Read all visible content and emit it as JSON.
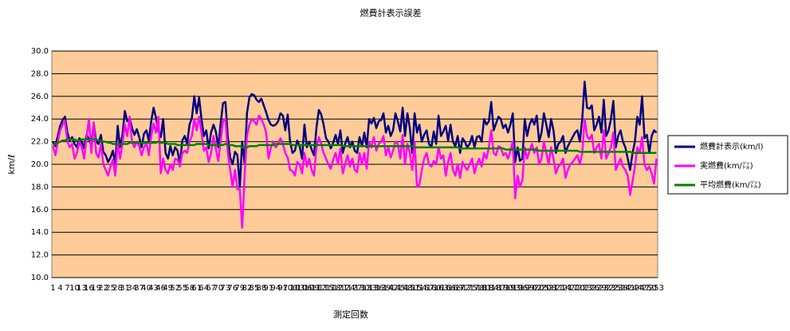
{
  "chart_data": {
    "type": "line",
    "title": "燃費計表示誤差",
    "x_label": "測定回数",
    "y_label": "km/ℓ",
    "ylim": [
      10,
      30
    ],
    "yticks": [
      {
        "value": 10,
        "label": "10.0"
      },
      {
        "value": 12,
        "label": "12.0"
      },
      {
        "value": 14,
        "label": "14.0"
      },
      {
        "value": 16,
        "label": "16.0"
      },
      {
        "value": 18,
        "label": "18.0"
      },
      {
        "value": 20,
        "label": "20.0"
      },
      {
        "value": 22,
        "label": "22.0"
      },
      {
        "value": 24,
        "label": "24.0"
      },
      {
        "value": 26,
        "label": "26.0"
      },
      {
        "value": 28,
        "label": "28.0"
      },
      {
        "value": 30,
        "label": "30.0"
      }
    ],
    "grid": true,
    "legend": "right",
    "background": "#ffcc99",
    "categories": [
      1,
      null,
      null,
      4,
      null,
      null,
      7,
      null,
      null,
      10,
      null,
      null,
      13,
      null,
      null,
      16,
      null,
      null,
      19,
      null,
      null,
      22,
      null,
      null,
      25,
      null,
      null,
      28,
      null,
      null,
      31,
      null,
      null,
      34,
      null,
      null,
      37,
      null,
      null,
      40,
      null,
      null,
      43,
      null,
      null,
      46,
      null,
      null,
      49,
      null,
      null,
      52,
      null,
      null,
      55,
      null,
      null,
      58,
      null,
      null,
      61,
      null,
      null,
      64,
      null,
      null,
      67,
      null,
      null,
      70,
      null,
      null,
      73,
      null,
      null,
      76,
      null,
      null,
      79,
      null,
      null,
      82,
      null,
      null,
      85,
      null,
      null,
      88,
      null,
      null,
      91,
      null,
      null,
      94,
      null,
      null,
      97,
      null,
      null,
      100,
      null,
      null,
      103,
      null,
      null,
      106,
      null,
      null,
      109,
      null,
      null,
      112,
      null,
      null,
      115,
      null,
      null,
      118,
      null,
      null,
      121,
      null,
      null,
      124,
      null,
      null,
      127,
      null,
      null,
      130,
      null,
      null,
      133,
      null,
      null,
      136,
      null,
      null,
      139,
      null,
      null,
      142,
      null,
      null,
      145,
      null,
      null,
      148,
      null,
      null,
      151,
      null,
      null,
      154,
      null,
      null,
      157,
      null,
      null,
      160,
      null,
      null,
      163,
      null,
      null,
      166,
      null,
      null,
      169,
      null,
      null,
      172,
      null,
      null,
      175,
      null,
      null,
      178,
      null,
      null,
      181,
      null,
      null,
      184,
      null,
      null,
      187,
      null,
      null,
      190,
      null,
      null,
      193,
      null,
      null,
      196,
      null,
      null,
      199,
      null,
      null,
      202,
      null,
      null,
      205,
      null,
      null,
      208,
      null,
      null,
      211,
      null,
      null,
      214,
      null,
      null,
      217,
      null,
      null,
      220,
      null,
      null,
      223,
      null,
      null,
      226,
      null,
      null,
      229,
      null,
      null,
      232,
      null,
      null,
      235,
      null,
      null,
      238,
      null,
      null,
      241,
      null,
      null,
      244,
      null,
      null,
      247,
      null,
      null,
      250,
      null,
      null,
      253
    ],
    "series": [
      {
        "name": "燃費計表示(km/l)",
        "color": "#000080",
        "values": [
          22.0,
          21.6,
          22.5,
          23.4,
          23.9,
          24.2,
          22.8,
          22.1,
          22.4,
          21.8,
          21.5,
          22.3,
          22.0,
          21.4,
          22.6,
          22.2,
          21.7,
          23.6,
          22.0,
          21.8,
          22.6,
          21.1,
          20.8,
          20.2,
          20.6,
          21.2,
          20.0,
          23.4,
          21.5,
          22.6,
          24.7,
          23.8,
          24.1,
          23.2,
          22.6,
          23.1,
          22.4,
          21.5,
          22.7,
          23.0,
          22.1,
          23.8,
          25.0,
          24.1,
          23.0,
          22.4,
          24.0,
          21.0,
          20.5,
          21.6,
          20.8,
          21.5,
          21.2,
          20.0,
          22.1,
          22.5,
          21.8,
          23.5,
          24.1,
          26.0,
          24.5,
          25.9,
          24.0,
          22.5,
          23.0,
          21.4,
          22.8,
          23.5,
          22.9,
          21.5,
          23.6,
          25.4,
          25.5,
          22.4,
          20.6,
          20.0,
          21.1,
          20.8,
          18.0,
          22.0,
          20.1,
          24.5,
          25.9,
          26.2,
          26.1,
          25.7,
          25.5,
          25.8,
          25.2,
          24.6,
          23.9,
          23.5,
          23.4,
          23.5,
          23.8,
          24.5,
          24.3,
          23.0,
          24.4,
          22.0,
          21.0,
          21.2,
          22.1,
          21.6,
          20.5,
          23.5,
          21.5,
          22.0,
          21.3,
          20.8,
          23.2,
          24.8,
          24.4,
          23.5,
          22.3,
          22.0,
          21.4,
          21.9,
          22.6,
          21.8,
          23.0,
          21.0,
          21.8,
          22.4,
          21.5,
          22.0,
          21.2,
          21.0,
          22.4,
          21.6,
          22.8,
          21.5,
          24.0,
          23.6,
          24.1,
          23.2,
          23.8,
          23.9,
          24.5,
          22.8,
          23.4,
          22.5,
          23.0,
          24.5,
          23.8,
          22.9,
          25.0,
          22.5,
          24.5,
          23.2,
          21.0,
          24.5,
          22.8,
          23.5,
          22.0,
          22.6,
          23.0,
          21.8,
          21.5,
          22.9,
          21.8,
          24.3,
          22.5,
          22.9,
          23.4,
          22.1,
          23.5,
          22.0,
          21.6,
          22.5,
          21.0,
          22.3,
          22.0,
          21.5,
          21.8,
          22.5,
          21.5,
          22.4,
          22.5,
          22.0,
          24.0,
          23.5,
          23.8,
          25.5,
          23.0,
          23.6,
          24.2,
          24.0,
          23.2,
          23.5,
          22.8,
          23.5,
          24.5,
          20.2,
          21.5,
          20.3,
          20.5,
          24.0,
          22.5,
          23.5,
          24.0,
          23.5,
          24.3,
          22.0,
          22.8,
          24.5,
          23.5,
          22.4,
          24.0,
          23.0,
          21.0,
          21.8,
          22.0,
          22.5,
          21.0,
          21.6,
          22.0,
          22.4,
          22.8,
          23.0,
          22.0,
          24.0,
          27.3,
          25.0,
          24.9,
          25.2,
          23.0,
          23.5,
          24.2,
          22.8,
          25.7,
          22.5,
          23.0,
          24.0,
          25.6,
          21.5,
          22.5,
          23.0,
          22.0,
          21.5,
          20.5,
          19.5,
          21.0,
          22.0,
          24.2,
          23.5,
          26.0,
          22.3,
          22.6,
          21.0,
          22.5,
          23.0,
          22.8
        ]
      },
      {
        "name": "実燃費(km/㍑)",
        "color": "#ff00ff",
        "values": [
          21.6,
          20.8,
          22.0,
          23.0,
          23.5,
          23.8,
          22.0,
          21.5,
          21.8,
          20.5,
          21.0,
          22.0,
          21.5,
          20.5,
          22.4,
          24.0,
          21.0,
          23.7,
          21.0,
          20.6,
          21.8,
          20.0,
          19.5,
          19.0,
          19.8,
          20.4,
          19.0,
          22.0,
          20.5,
          21.8,
          23.5,
          22.5,
          24.2,
          22.0,
          21.5,
          22.0,
          21.6,
          20.8,
          21.5,
          21.9,
          20.8,
          22.5,
          23.6,
          22.8,
          24.2,
          19.2,
          20.5,
          19.5,
          19.2,
          20.0,
          19.5,
          20.5,
          20.4,
          19.8,
          21.0,
          21.2,
          21.0,
          22.0,
          22.5,
          24.0,
          23.0,
          24.2,
          22.8,
          21.2,
          21.5,
          20.2,
          21.0,
          22.5,
          21.4,
          20.3,
          22.0,
          23.8,
          24.0,
          21.0,
          19.5,
          18.0,
          19.5,
          17.8,
          17.8,
          14.4,
          19.0,
          22.5,
          23.5,
          24.0,
          23.8,
          23.5,
          24.3,
          24.0,
          23.5,
          22.8,
          20.5,
          21.5,
          22.0,
          21.5,
          21.8,
          22.3,
          21.8,
          21.0,
          20.6,
          19.5,
          19.4,
          19.0,
          20.2,
          20.0,
          19.2,
          21.0,
          19.8,
          20.5,
          19.5,
          19.0,
          21.5,
          22.4,
          21.8,
          21.0,
          20.5,
          20.0,
          19.6,
          20.4,
          21.0,
          20.0,
          21.4,
          19.2,
          20.0,
          20.8,
          19.8,
          20.5,
          19.5,
          19.3,
          21.0,
          20.0,
          21.0,
          19.6,
          22.0,
          21.5,
          22.4,
          21.2,
          21.8,
          22.0,
          22.5,
          20.8,
          21.5,
          20.6,
          21.2,
          22.0,
          21.8,
          20.5,
          22.6,
          20.0,
          21.8,
          21.0,
          19.5,
          22.0,
          18.0,
          18.2,
          19.5,
          20.5,
          21.0,
          20.0,
          19.8,
          20.3,
          20.0,
          21.5,
          20.5,
          20.8,
          19.0,
          20.2,
          21.0,
          19.5,
          19.0,
          20.0,
          18.8,
          20.2,
          19.8,
          19.5,
          20.0,
          20.5,
          19.2,
          20.0,
          20.5,
          19.8,
          21.0,
          20.5,
          21.5,
          23.0,
          21.0,
          20.8,
          21.6,
          21.5,
          20.8,
          21.0,
          20.5,
          21.2,
          22.0,
          17.0,
          19.0,
          18.0,
          18.6,
          21.5,
          20.5,
          21.2,
          21.8,
          21.0,
          21.5,
          20.0,
          20.5,
          22.0,
          21.0,
          20.0,
          21.5,
          20.5,
          19.2,
          19.8,
          20.0,
          20.5,
          18.8,
          19.5,
          20.0,
          20.2,
          20.5,
          20.8,
          20.0,
          21.0,
          24.0,
          22.5,
          22.2,
          22.6,
          21.0,
          21.5,
          21.8,
          20.5,
          23.0,
          20.5,
          21.0,
          21.5,
          22.8,
          19.5,
          20.0,
          20.5,
          19.8,
          19.5,
          19.0,
          17.3,
          18.5,
          19.8,
          21.5,
          21.0,
          22.4,
          20.0,
          19.5,
          19.8,
          19.2,
          18.3,
          20.5
        ]
      },
      {
        "name": "平均燃費(km/㍑)",
        "color": "#008000",
        "values": [
          21.7,
          21.8,
          21.9,
          22.0,
          22.1,
          22.1,
          22.2,
          22.2,
          22.2,
          22.2,
          22.1,
          22.1,
          22.2,
          22.2,
          22.2,
          22.2,
          22.2,
          22.2,
          22.2,
          22.1,
          22.1,
          22.0,
          22.0,
          21.9,
          21.9,
          21.8,
          21.8,
          21.8,
          21.8,
          21.8,
          21.8,
          21.8,
          21.9,
          21.9,
          21.9,
          21.9,
          21.9,
          21.9,
          21.9,
          21.9,
          21.9,
          21.9,
          21.9,
          21.9,
          22.0,
          21.9,
          21.9,
          21.9,
          21.8,
          21.8,
          21.8,
          21.8,
          21.7,
          21.7,
          21.7,
          21.7,
          21.7,
          21.7,
          21.7,
          21.7,
          21.8,
          21.8,
          21.8,
          21.8,
          21.8,
          21.7,
          21.7,
          21.7,
          21.7,
          21.7,
          21.7,
          21.7,
          21.8,
          21.7,
          21.7,
          21.7,
          21.6,
          21.6,
          21.6,
          21.5,
          21.5,
          21.5,
          21.6,
          21.6,
          21.6,
          21.6,
          21.7,
          21.7,
          21.7,
          21.7,
          21.7,
          21.7,
          21.7,
          21.8,
          21.8,
          21.8,
          21.8,
          21.8,
          21.8,
          21.8,
          21.7,
          21.7,
          21.7,
          21.7,
          21.7,
          21.7,
          21.7,
          21.7,
          21.7,
          21.7,
          21.7,
          21.7,
          21.7,
          21.7,
          21.7,
          21.7,
          21.7,
          21.7,
          21.7,
          21.7,
          21.7,
          21.6,
          21.6,
          21.6,
          21.6,
          21.6,
          21.6,
          21.6,
          21.6,
          21.6,
          21.6,
          21.6,
          21.6,
          21.6,
          21.6,
          21.6,
          21.6,
          21.6,
          21.6,
          21.6,
          21.6,
          21.6,
          21.6,
          21.6,
          21.6,
          21.6,
          21.6,
          21.6,
          21.6,
          21.6,
          21.6,
          21.5,
          21.5,
          21.5,
          21.5,
          21.5,
          21.5,
          21.5,
          21.5,
          21.5,
          21.5,
          21.5,
          21.5,
          21.5,
          21.5,
          21.5,
          21.5,
          21.5,
          21.5,
          21.5,
          21.4,
          21.4,
          21.4,
          21.4,
          21.4,
          21.4,
          21.4,
          21.4,
          21.4,
          21.4,
          21.4,
          21.4,
          21.4,
          21.4,
          21.4,
          21.4,
          21.4,
          21.4,
          21.4,
          21.3,
          21.3,
          21.3,
          21.3,
          21.3,
          21.3,
          21.3,
          21.3,
          21.3,
          21.3,
          21.3,
          21.3,
          21.3,
          21.3,
          21.2,
          21.2,
          21.2,
          21.2,
          21.2,
          21.2,
          21.2,
          21.2,
          21.2,
          21.2,
          21.2,
          21.2,
          21.2,
          21.2,
          21.2,
          21.2,
          21.2,
          21.1,
          21.1,
          21.1,
          21.1,
          21.1,
          21.1,
          21.1,
          21.1,
          21.1,
          21.1,
          21.1,
          21.1,
          21.1,
          21.1,
          21.1,
          21.1,
          21.1,
          21.1,
          21.1,
          21.1,
          21.1,
          21.1,
          21.0,
          21.0,
          21.0,
          21.0,
          21.0,
          21.0,
          21.0,
          21.0,
          21.0,
          21.0,
          21.0
        ]
      }
    ]
  }
}
